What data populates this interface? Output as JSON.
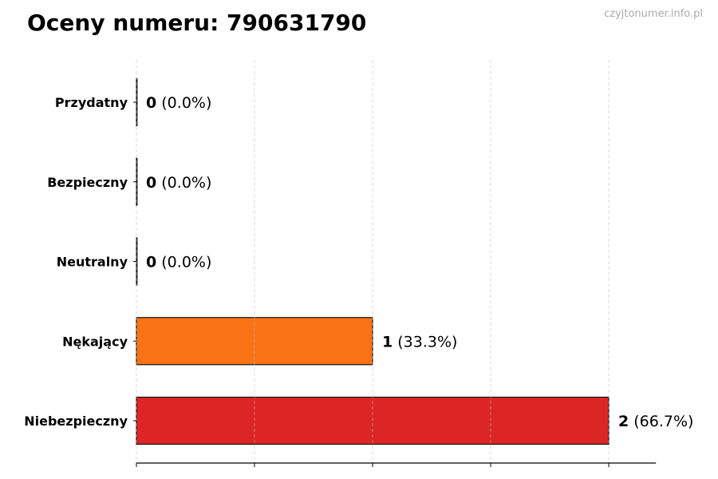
{
  "title": "Oceny numeru: 790631790",
  "watermark": "czyjtonumer.info.pl",
  "chart_data": {
    "type": "bar",
    "orientation": "horizontal",
    "title": "Oceny numeru: 790631790",
    "categories": [
      "Przydatny",
      "Bezpieczny",
      "Neutralny",
      "Nękający",
      "Niebezpieczny"
    ],
    "values": [
      0,
      0,
      0,
      1,
      2
    ],
    "percent_labels": [
      "(0.0%)",
      "(0.0%)",
      "(0.0%)",
      "(33.3%)",
      "(66.7%)"
    ],
    "colors": [
      "#2ca02c",
      "#1f77b4",
      "#888888",
      "#f97316",
      "#dc2626"
    ],
    "xlim": [
      0,
      2.2
    ],
    "xticks": [
      0,
      0.5,
      1,
      1.5,
      2
    ],
    "grid": "x-dashed",
    "xlabel": "",
    "ylabel": ""
  }
}
